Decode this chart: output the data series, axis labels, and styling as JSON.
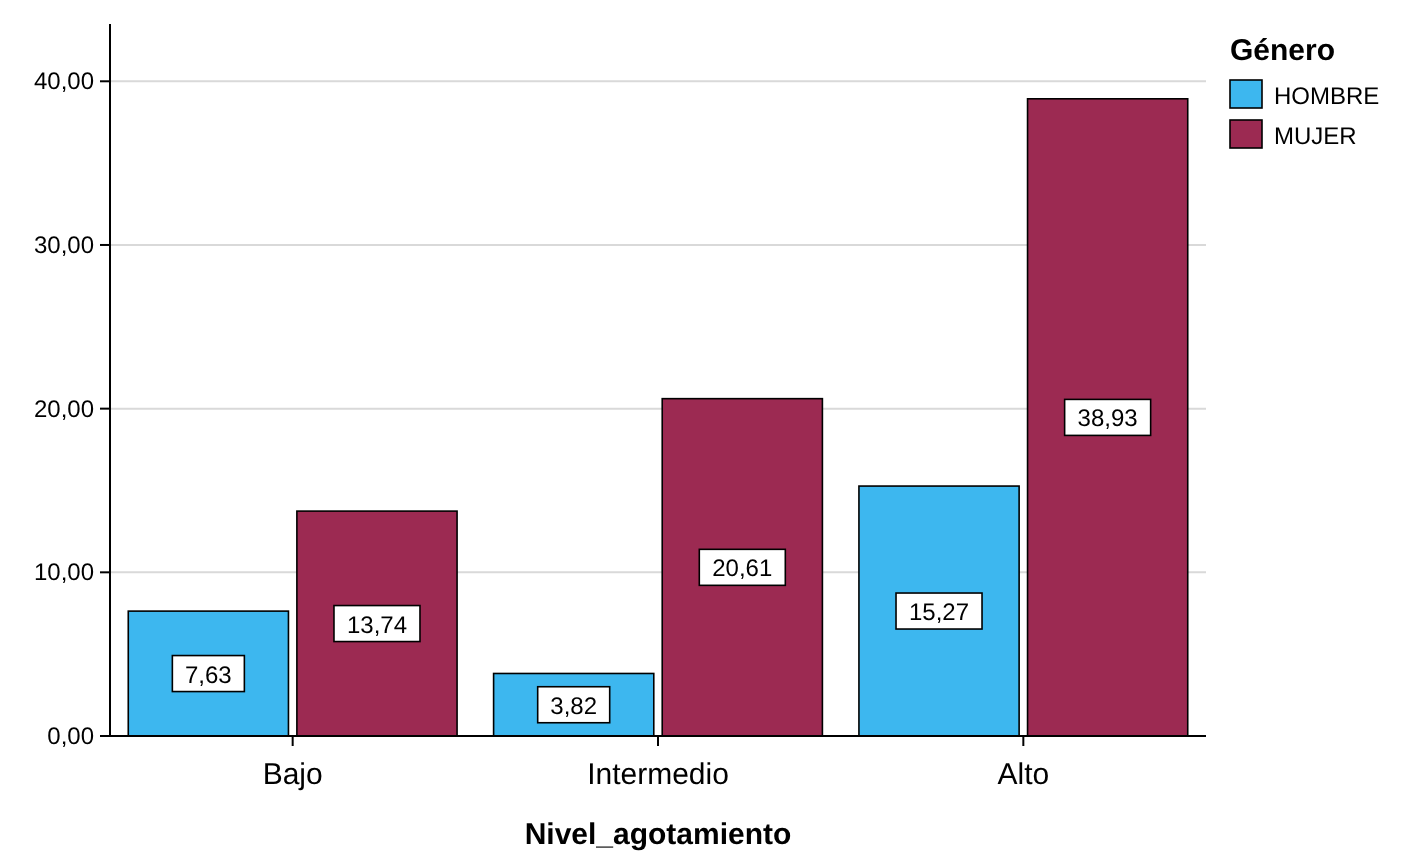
{
  "chart_data": {
    "type": "bar",
    "categories": [
      "Bajo",
      "Intermedio",
      "Alto"
    ],
    "series": [
      {
        "name": "HOMBRE",
        "color": "#3db7ef",
        "values": [
          7.63,
          3.82,
          15.27
        ],
        "value_labels": [
          "7,63",
          "3,82",
          "15,27"
        ]
      },
      {
        "name": "MUJER",
        "color": "#9c2a52",
        "values": [
          13.74,
          20.61,
          38.93
        ],
        "value_labels": [
          "13,74",
          "20,61",
          "38,93"
        ]
      }
    ],
    "xlabel": "Nivel_agotamiento",
    "legend_title": "Género",
    "legend": "top right",
    "ylim": [
      0,
      43.5
    ],
    "yticks": [
      {
        "value": 0,
        "label": "0,00"
      },
      {
        "value": 10,
        "label": "10,00"
      },
      {
        "value": 20,
        "label": "20,00"
      },
      {
        "value": 30,
        "label": "30,00"
      },
      {
        "value": 40,
        "label": "40,00"
      }
    ],
    "grid": "y"
  }
}
